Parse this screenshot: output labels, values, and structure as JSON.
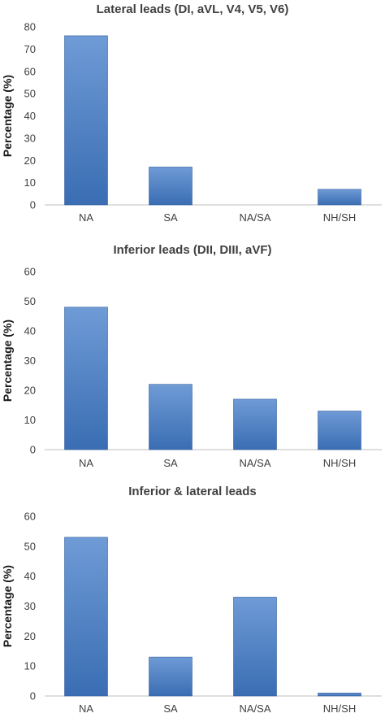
{
  "chart_data": [
    {
      "type": "bar",
      "title": "Lateral leads (DI, aVL, V4, V5, V6)",
      "ylabel": "Percentage (%)",
      "xlabel": "",
      "categories": [
        "NA",
        "SA",
        "NA/SA",
        "NH/SH"
      ],
      "values": [
        76,
        17,
        0,
        7
      ],
      "ylim": [
        0,
        80
      ],
      "yticks": [
        "0",
        "10",
        "20",
        "30",
        "40",
        "50",
        "60",
        "70",
        "80"
      ],
      "grid": false,
      "legend": "none"
    },
    {
      "type": "bar",
      "title": "Inferior leads (DII, DIII, aVF)",
      "ylabel": "Percentage (%)",
      "xlabel": "",
      "categories": [
        "NA",
        "SA",
        "NA/SA",
        "NH/SH"
      ],
      "values": [
        48,
        22,
        17,
        13
      ],
      "ylim": [
        0,
        60
      ],
      "yticks": [
        "0",
        "10",
        "20",
        "30",
        "40",
        "50",
        "60"
      ],
      "grid": false,
      "legend": "none"
    },
    {
      "type": "bar",
      "title": "Inferior & lateral leads",
      "ylabel": "Percentage (%)",
      "xlabel": "",
      "categories": [
        "NA",
        "SA",
        "NA/SA",
        "NH/SH"
      ],
      "values": [
        53,
        13,
        33,
        1
      ],
      "ylim": [
        0,
        60
      ],
      "yticks": [
        "0",
        "10",
        "20",
        "30",
        "40",
        "50",
        "60"
      ],
      "grid": false,
      "legend": "none"
    }
  ],
  "colors": {
    "bar_top": "#6f9bd6",
    "bar_bottom": "#3a6db3",
    "axis": "#bfbfbf",
    "text": "#404040"
  }
}
